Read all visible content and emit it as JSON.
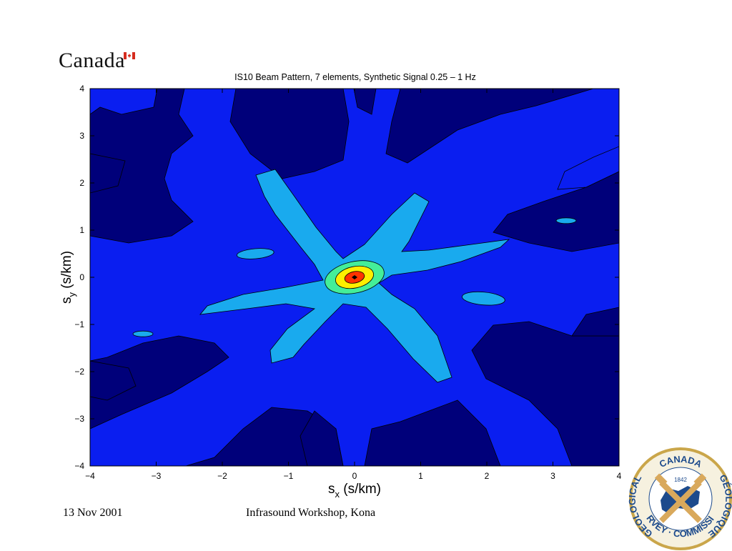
{
  "header": {
    "wordmark": "Canada"
  },
  "footer": {
    "date": "13 Nov 2001",
    "event": "Infrasound Workshop, Kona"
  },
  "seal": {
    "top_text": "CANADA",
    "year": "1842",
    "left_text": "GEOLOGICAL",
    "right_text": "GÉOLOGIQUE",
    "bottom_text": "SURVEY · COMMISSION"
  },
  "colors": {
    "level1": "#00007a",
    "level2": "#0a1ef0",
    "level3": "#19aaee",
    "level4": "#44ee99",
    "level5": "#ffee00",
    "level6": "#ff3300",
    "flag_red": "#d52b1e"
  },
  "chart_data": {
    "type": "contour",
    "title": "IS10 Beam Pattern, 7 elements, Synthetic Signal 0.25 – 1 Hz",
    "xlabel": {
      "symbol": "s",
      "subscript": "x",
      "unit": "(s/km)"
    },
    "ylabel": {
      "symbol": "s",
      "subscript": "y",
      "unit": "(s/km)"
    },
    "xlim": [
      -4,
      4
    ],
    "ylim": [
      -4,
      4
    ],
    "xticks": [
      "−4",
      "−3",
      "−2",
      "−1",
      "0",
      "1",
      "2",
      "3",
      "4"
    ],
    "yticks": [
      "4",
      "3",
      "2",
      "1",
      "0",
      "−1",
      "−2",
      "−3",
      "−4"
    ],
    "peak": [
      0,
      0
    ],
    "arms": [
      {
        "tip": [
          -1.4,
          1.6
        ]
      },
      {
        "tip": [
          0.85,
          1.35
        ]
      },
      {
        "tip": [
          2.3,
          0.6
        ]
      },
      {
        "tip": [
          1.4,
          -1.55
        ]
      },
      {
        "tip": [
          -1.3,
          -1.4
        ]
      },
      {
        "tip": [
          -2.35,
          -0.6
        ]
      }
    ],
    "islands": [
      {
        "center": [
          -1.5,
          0.5
        ]
      },
      {
        "center": [
          1.95,
          -0.45
        ]
      },
      {
        "center": [
          -3.2,
          -1.2
        ]
      },
      {
        "center": [
          3.2,
          1.2
        ]
      }
    ],
    "levels": 6
  }
}
